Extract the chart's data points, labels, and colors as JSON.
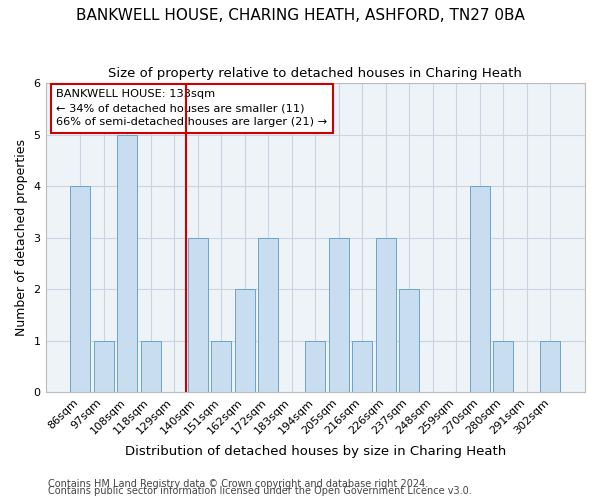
{
  "title": "BANKWELL HOUSE, CHARING HEATH, ASHFORD, TN27 0BA",
  "subtitle": "Size of property relative to detached houses in Charing Heath",
  "xlabel": "Distribution of detached houses by size in Charing Heath",
  "ylabel": "Number of detached properties",
  "footer1": "Contains HM Land Registry data © Crown copyright and database right 2024.",
  "footer2": "Contains public sector information licensed under the Open Government Licence v3.0.",
  "categories": [
    "86sqm",
    "97sqm",
    "108sqm",
    "118sqm",
    "129sqm",
    "140sqm",
    "151sqm",
    "162sqm",
    "172sqm",
    "183sqm",
    "194sqm",
    "205sqm",
    "216sqm",
    "226sqm",
    "237sqm",
    "248sqm",
    "259sqm",
    "270sqm",
    "280sqm",
    "291sqm",
    "302sqm"
  ],
  "values": [
    4,
    1,
    5,
    1,
    0,
    3,
    1,
    2,
    3,
    0,
    1,
    3,
    1,
    3,
    2,
    0,
    0,
    4,
    1,
    0,
    1
  ],
  "bar_color": "#c8ddf0",
  "bar_edge_color": "#6ba3c8",
  "vline_position": 4.5,
  "vline_color": "#cc0000",
  "annotation_line1": "BANKWELL HOUSE: 133sqm",
  "annotation_line2": "← 34% of detached houses are smaller (11)",
  "annotation_line3": "66% of semi-detached houses are larger (21) →",
  "annotation_box_color": "#cc0000",
  "annotation_box_bg": "#ffffff",
  "ylim": [
    0,
    6
  ],
  "yticks": [
    0,
    1,
    2,
    3,
    4,
    5,
    6
  ],
  "grid_color": "#c8d4e0",
  "bg_color": "#ffffff",
  "plot_bg_color": "#eef3f8",
  "title_fontsize": 11,
  "subtitle_fontsize": 9.5,
  "xlabel_fontsize": 9.5,
  "ylabel_fontsize": 9,
  "tick_fontsize": 8,
  "footer_fontsize": 7
}
